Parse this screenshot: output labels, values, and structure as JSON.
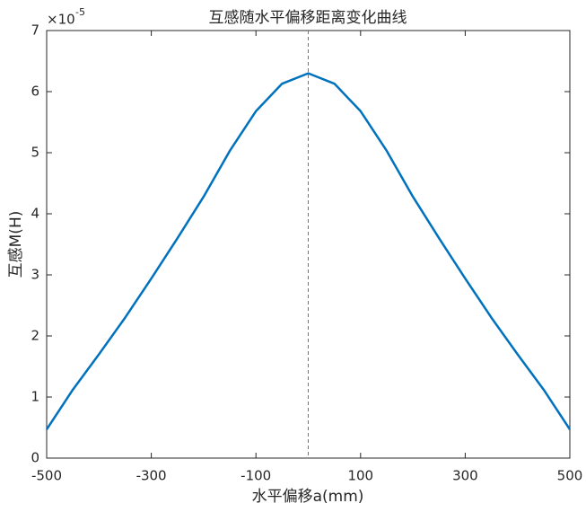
{
  "chart_data": {
    "type": "line",
    "title": "互感随水平偏移距离变化曲线",
    "x_label": "水平偏移a(mm)",
    "y_label": "互感M(H)",
    "y_scale_base": "×10",
    "y_scale_exponent": "-5",
    "x": [
      -500,
      -450,
      -400,
      -350,
      -300,
      -250,
      -200,
      -150,
      -100,
      -50,
      0,
      50,
      100,
      150,
      200,
      250,
      300,
      350,
      400,
      450,
      500
    ],
    "series": [
      {
        "name": "M",
        "color": "#0072bd",
        "values": [
          0.47,
          1.12,
          1.7,
          2.3,
          2.94,
          3.6,
          4.28,
          5.03,
          5.68,
          6.13,
          6.3,
          6.13,
          5.68,
          5.03,
          4.28,
          3.6,
          2.94,
          2.3,
          1.7,
          1.12,
          0.47
        ]
      }
    ],
    "vline": 0,
    "xlim": [
      -500,
      500
    ],
    "xticks": [
      -500,
      -300,
      -100,
      100,
      300,
      500
    ],
    "ylim": [
      0,
      7
    ],
    "yticks": [
      0,
      1,
      2,
      3,
      4,
      5,
      6,
      7
    ]
  }
}
